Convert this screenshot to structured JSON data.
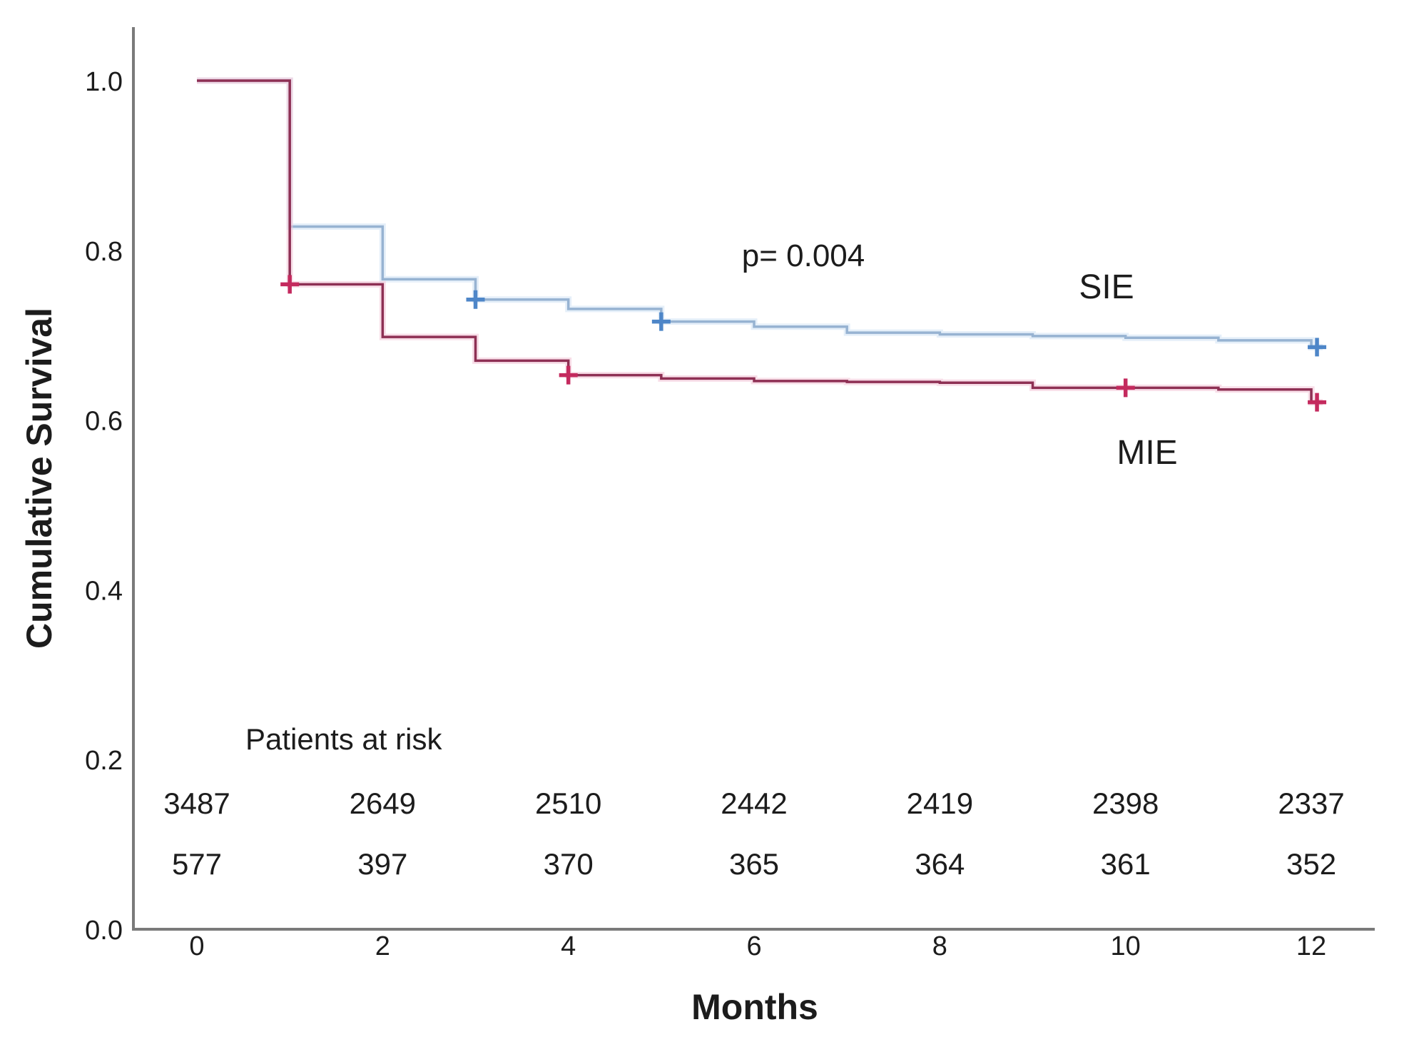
{
  "figure": {
    "background": "#ffffff",
    "axis_color": "#7a7a7a",
    "text_color": "#1c1c1c"
  },
  "chart_data": {
    "type": "line",
    "variant": "kaplan_meier_step",
    "title": "",
    "xlabel": "Months",
    "ylabel": "Cumulative Survival",
    "xlim": [
      0,
      12
    ],
    "ylim": [
      0.0,
      1.0
    ],
    "x_ticks": [
      0,
      2,
      4,
      6,
      8,
      10,
      12
    ],
    "y_ticks": [
      1.0,
      0.8,
      0.6,
      0.4,
      0.2,
      0.0
    ],
    "grid": false,
    "legend_position": "inline-labels",
    "annotations": [
      {
        "id": "p_value",
        "text": "p= 0.004"
      },
      {
        "id": "sie_label",
        "text": "SIE"
      },
      {
        "id": "mie_label",
        "text": "MIE"
      }
    ],
    "series": [
      {
        "name": "SIE",
        "line_color": "#97b3d2",
        "glow_color": "#cfe2f4",
        "censor_color": "#4e86c8",
        "points": [
          [
            0,
            1.0
          ],
          [
            1,
            0.828
          ],
          [
            2,
            0.766
          ],
          [
            3,
            0.742
          ],
          [
            4,
            0.731
          ],
          [
            5,
            0.716
          ],
          [
            6,
            0.71
          ],
          [
            7,
            0.703
          ],
          [
            8,
            0.701
          ],
          [
            9,
            0.699
          ],
          [
            10,
            0.697
          ],
          [
            11,
            0.694
          ],
          [
            12,
            0.686
          ]
        ],
        "censors": [
          [
            3,
            0.742
          ],
          [
            5,
            0.716
          ],
          [
            12,
            0.686
          ]
        ]
      },
      {
        "name": "MIE",
        "line_color": "#8e3054",
        "glow_color": "#f3c3d6",
        "censor_color": "#c42a5e",
        "points": [
          [
            0,
            1.0
          ],
          [
            1,
            0.76
          ],
          [
            2,
            0.698
          ],
          [
            3,
            0.67
          ],
          [
            4,
            0.653
          ],
          [
            5,
            0.649
          ],
          [
            6,
            0.646
          ],
          [
            7,
            0.645
          ],
          [
            8,
            0.644
          ],
          [
            9,
            0.638
          ],
          [
            10,
            0.638
          ],
          [
            11,
            0.636
          ],
          [
            12,
            0.621
          ]
        ],
        "censors": [
          [
            1,
            0.76
          ],
          [
            4,
            0.653
          ],
          [
            10,
            0.638
          ],
          [
            12,
            0.621
          ]
        ]
      }
    ],
    "at_risk": {
      "title": "Patients at risk",
      "months": [
        0,
        2,
        4,
        6,
        8,
        10,
        12
      ],
      "rows": [
        {
          "series": "SIE",
          "counts": [
            3487,
            2649,
            2510,
            2442,
            2419,
            2398,
            2337
          ]
        },
        {
          "series": "MIE",
          "counts": [
            577,
            397,
            370,
            365,
            364,
            361,
            352
          ]
        }
      ]
    }
  }
}
